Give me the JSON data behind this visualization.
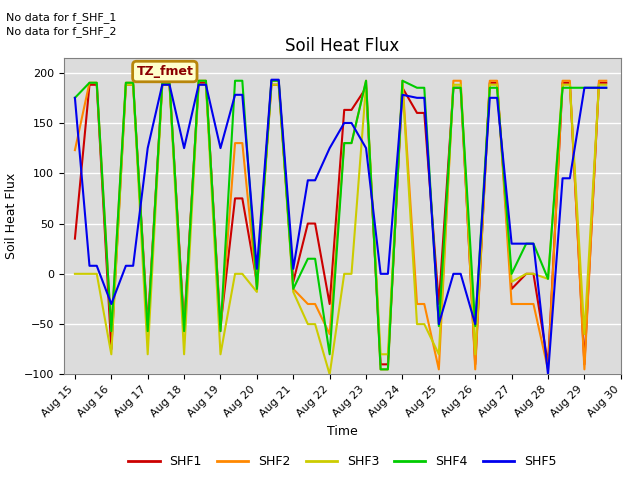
{
  "title": "Soil Heat Flux",
  "ylabel": "Soil Heat Flux",
  "xlabel": "Time",
  "ylim": [
    -100,
    215
  ],
  "yticks": [
    -100,
    -50,
    0,
    50,
    100,
    150,
    200
  ],
  "note1": "No data for f_SHF_1",
  "note2": "No data for f_SHF_2",
  "tz_label": "TZ_fmet",
  "axes_bg": "#dcdcdc",
  "fig_bg": "#ffffff",
  "legend_entries": [
    "SHF1",
    "SHF2",
    "SHF3",
    "SHF4",
    "SHF5"
  ],
  "line_colors": [
    "#cc0000",
    "#ff8800",
    "#cccc00",
    "#00cc00",
    "#0000ee"
  ],
  "x_tick_labels": [
    "Aug 15",
    "Aug 16",
    "Aug 17",
    "Aug 18",
    "Aug 19",
    "Aug 20",
    "Aug 21",
    "Aug 22",
    "Aug 23",
    "Aug 24",
    "Aug 25",
    "Aug 26",
    "Aug 27",
    "Aug 28",
    "Aug 29",
    "Aug 30"
  ],
  "series": {
    "SHF1": {
      "x": [
        0,
        0.4,
        0.6,
        1,
        1.4,
        1.6,
        2,
        2.4,
        2.6,
        3,
        3.4,
        3.6,
        4,
        4.4,
        4.6,
        5,
        5.4,
        5.6,
        6,
        6.4,
        6.6,
        7,
        7.4,
        7.6,
        8,
        8.4,
        8.6,
        9,
        9.4,
        9.6,
        10,
        10.4,
        10.6,
        11,
        11.4,
        11.6,
        12,
        12.4,
        12.6,
        13,
        13.4,
        13.6,
        14,
        14.4,
        14.6
      ],
      "y": [
        35,
        188,
        188,
        -75,
        188,
        188,
        -52,
        188,
        188,
        -52,
        190,
        190,
        -52,
        75,
        75,
        -8,
        188,
        188,
        -8,
        50,
        50,
        -30,
        163,
        163,
        185,
        -90,
        -90,
        185,
        160,
        160,
        -30,
        185,
        185,
        -90,
        190,
        190,
        -15,
        0,
        0,
        -90,
        190,
        190,
        -90,
        190,
        190
      ]
    },
    "SHF2": {
      "x": [
        0,
        0.4,
        0.6,
        1,
        1.4,
        1.6,
        2,
        2.4,
        2.6,
        3,
        3.4,
        3.6,
        4,
        4.4,
        4.6,
        5,
        5.4,
        5.6,
        6,
        6.4,
        6.6,
        7,
        7.4,
        7.6,
        8,
        8.4,
        8.6,
        9,
        9.4,
        9.6,
        10,
        10.4,
        10.6,
        11,
        11.4,
        11.6,
        12,
        12.4,
        12.6,
        13,
        13.4,
        13.6,
        14,
        14.4,
        14.6
      ],
      "y": [
        123,
        190,
        190,
        -57,
        190,
        190,
        -57,
        190,
        190,
        -57,
        192,
        192,
        -57,
        130,
        130,
        -15,
        192,
        192,
        -15,
        -30,
        -30,
        -60,
        130,
        130,
        192,
        -95,
        -95,
        192,
        -30,
        -30,
        -95,
        192,
        192,
        -95,
        192,
        192,
        -30,
        -30,
        -30,
        -95,
        192,
        192,
        -95,
        192,
        192
      ]
    },
    "SHF3": {
      "x": [
        0,
        0.4,
        0.6,
        1,
        1.4,
        1.6,
        2,
        2.4,
        2.6,
        3,
        3.4,
        3.6,
        4,
        4.4,
        4.6,
        5,
        5.4,
        5.6,
        6,
        6.4,
        6.6,
        7,
        7.4,
        7.6,
        8,
        8.4,
        8.6,
        9,
        9.4,
        9.6,
        10,
        10.4,
        10.6,
        11,
        11.4,
        11.6,
        12,
        12.4,
        12.6,
        13,
        13.4,
        13.6,
        14,
        14.4,
        14.6
      ],
      "y": [
        0,
        0,
        0,
        -80,
        188,
        188,
        -80,
        188,
        188,
        -80,
        188,
        188,
        -80,
        0,
        0,
        -18,
        188,
        188,
        -18,
        -50,
        -50,
        -100,
        0,
        0,
        188,
        -80,
        -80,
        188,
        -50,
        -50,
        -80,
        188,
        188,
        -80,
        188,
        188,
        -8,
        0,
        0,
        -5,
        188,
        188,
        -60,
        188,
        188
      ]
    },
    "SHF4": {
      "x": [
        0,
        0.4,
        0.6,
        1,
        1.4,
        1.6,
        2,
        2.4,
        2.6,
        3,
        3.4,
        3.6,
        4,
        4.4,
        4.6,
        5,
        5.4,
        5.6,
        6,
        6.4,
        6.6,
        7,
        7.4,
        7.6,
        8,
        8.4,
        8.6,
        9,
        9.4,
        9.6,
        10,
        10.4,
        10.6,
        11,
        11.4,
        11.6,
        12,
        12.4,
        12.6,
        13,
        13.4,
        13.6,
        14,
        14.4,
        14.6
      ],
      "y": [
        175,
        190,
        190,
        -57,
        190,
        190,
        -57,
        190,
        190,
        -57,
        192,
        192,
        -57,
        192,
        192,
        -15,
        192,
        192,
        -15,
        15,
        15,
        -80,
        130,
        130,
        192,
        -95,
        -95,
        192,
        185,
        185,
        -52,
        185,
        185,
        -52,
        185,
        185,
        0,
        30,
        30,
        -5,
        185,
        185,
        185,
        185,
        185
      ]
    },
    "SHF5": {
      "x": [
        0,
        0.4,
        0.6,
        1,
        1.4,
        1.6,
        2,
        2.4,
        2.6,
        3,
        3.4,
        3.6,
        4,
        4.4,
        4.6,
        5,
        5.4,
        5.6,
        6,
        6.4,
        6.6,
        7,
        7.4,
        7.6,
        8,
        8.4,
        8.6,
        9,
        9.4,
        9.6,
        10,
        10.4,
        10.6,
        11,
        11.4,
        11.6,
        12,
        12.4,
        12.6,
        13,
        13.4,
        13.6,
        14,
        14.4,
        14.6
      ],
      "y": [
        175,
        8,
        8,
        -30,
        8,
        8,
        125,
        188,
        188,
        125,
        188,
        188,
        125,
        178,
        178,
        5,
        193,
        193,
        5,
        93,
        93,
        125,
        150,
        150,
        125,
        0,
        0,
        178,
        175,
        175,
        -50,
        0,
        0,
        -50,
        175,
        175,
        30,
        30,
        30,
        -100,
        95,
        95,
        185,
        185,
        185
      ]
    }
  }
}
